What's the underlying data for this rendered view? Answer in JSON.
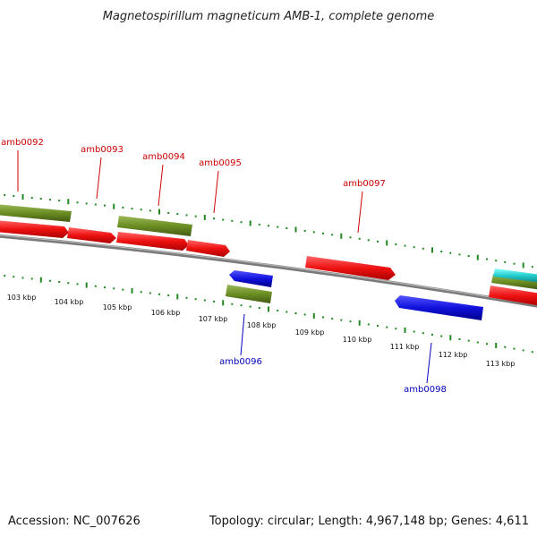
{
  "title": "Magnetospirillum magneticum AMB-1, complete genome",
  "accession_text": "Accession: NC_007626",
  "topology_text": "Topology: circular; Length: 4,967,148 bp; Genes: 4,611",
  "colors": {
    "forward_gene": "#ee1111",
    "reverse_gene": "#1111dd",
    "olive_feature": "#6b8e23",
    "cyan_feature": "#22cccc",
    "backbone": "#888888",
    "tick": "#228822",
    "forward_label": "#cc0000",
    "reverse_label": "#0000bb"
  },
  "gene_labels": [
    {
      "name": "amb0092",
      "strand": "forward"
    },
    {
      "name": "amb0093",
      "strand": "forward"
    },
    {
      "name": "amb0094",
      "strand": "forward"
    },
    {
      "name": "amb0095",
      "strand": "forward"
    },
    {
      "name": "amb0097",
      "strand": "forward"
    },
    {
      "name": "amb0096",
      "strand": "reverse"
    },
    {
      "name": "amb0098",
      "strand": "reverse"
    }
  ],
  "kbp_labels": [
    "103 kbp",
    "104 kbp",
    "105 kbp",
    "106 kbp",
    "107 kbp",
    "108 kbp",
    "109 kbp",
    "110 kbp",
    "111 kbp",
    "112 kbp",
    "113 kbp"
  ]
}
